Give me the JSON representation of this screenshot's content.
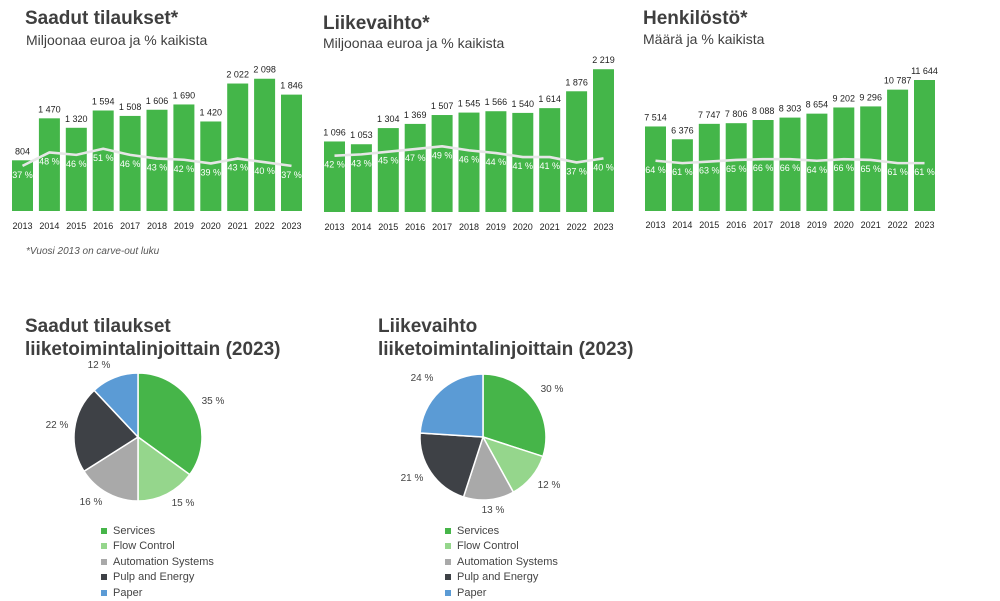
{
  "charts": [
    {
      "title": "Saadut tilaukset*",
      "subtitle": "Miljoonaa euroa ja % kaikista",
      "note": "*Vuosi 2013 on carve-out luku"
    },
    {
      "title": "Liikevaihto*",
      "subtitle": "Miljoonaa euroa ja % kaikista"
    },
    {
      "title": "Henkilöstö*",
      "subtitle": "Määrä ja % kaikista"
    },
    {
      "title_lines": [
        "Saadut tilaukset",
        "liiketoimintalinjoittain (2023)"
      ]
    },
    {
      "title_lines": [
        "Liikevaihto",
        "liiketoimintalinjoittain (2023)"
      ]
    }
  ],
  "legend": [
    "Services",
    "Flow Control",
    "Automation Systems",
    "Pulp and Energy",
    "Paper"
  ],
  "colors": {
    "bar": "#44b649",
    "line": "#e6e6e6",
    "slices": [
      "#46b549",
      "#95d68c",
      "#a9a9a9",
      "#3e4146",
      "#5b9bd5"
    ]
  },
  "chart_data": [
    {
      "type": "bar",
      "title": "Saadut tilaukset*",
      "subtitle": "Miljoonaa euroa ja % kaikista",
      "categories": [
        "2013",
        "2014",
        "2015",
        "2016",
        "2017",
        "2018",
        "2019",
        "2020",
        "2021",
        "2022",
        "2023"
      ],
      "values": [
        804,
        1470,
        1320,
        1594,
        1508,
        1606,
        1690,
        1420,
        2022,
        2098,
        1846
      ],
      "value_labels": [
        "804",
        "1 470",
        "1 320",
        "1 594",
        "1 508",
        "1 606",
        "1 690",
        "1 420",
        "2 022",
        "2 098",
        "1 846"
      ],
      "share_pct": [
        37,
        48,
        46,
        51,
        46,
        43,
        42,
        39,
        43,
        40,
        37
      ],
      "share_labels": [
        "37 %",
        "48 %",
        "46 %",
        "51 %",
        "46 %",
        "43 %",
        "42 %",
        "39 %",
        "43 %",
        "40 %",
        "37 %"
      ],
      "ylim": [
        0,
        2300
      ],
      "grid": false
    },
    {
      "type": "bar",
      "title": "Liikevaihto*",
      "subtitle": "Miljoonaa euroa ja % kaikista",
      "categories": [
        "2013",
        "2014",
        "2015",
        "2016",
        "2017",
        "2018",
        "2019",
        "2020",
        "2021",
        "2022",
        "2023"
      ],
      "values": [
        1096,
        1053,
        1304,
        1369,
        1507,
        1545,
        1566,
        1540,
        1614,
        1876,
        2219
      ],
      "value_labels": [
        "1 096",
        "1 053",
        "1 304",
        "1 369",
        "1 507",
        "1 545",
        "1 566",
        "1 540",
        "1 614",
        "1 876",
        "2 219"
      ],
      "share_pct": [
        42,
        43,
        45,
        47,
        49,
        46,
        44,
        41,
        41,
        37,
        40
      ],
      "share_labels": [
        "42 %",
        "43 %",
        "45 %",
        "47 %",
        "49 %",
        "46 %",
        "44 %",
        "41 %",
        "41 %",
        "37 %",
        "40 %"
      ],
      "ylim": [
        0,
        2300
      ],
      "grid": false
    },
    {
      "type": "bar",
      "title": "Henkilöstö*",
      "subtitle": "Määrä ja % kaikista",
      "categories": [
        "2013",
        "2014",
        "2015",
        "2016",
        "2017",
        "2018",
        "2019",
        "2020",
        "2021",
        "2022",
        "2023"
      ],
      "values": [
        7514,
        6376,
        7747,
        7806,
        8088,
        8303,
        8654,
        9202,
        9296,
        10787,
        11644
      ],
      "value_labels": [
        "7 514",
        "6 376",
        "7 747",
        "7 806",
        "8 088",
        "8 303",
        "8 654",
        "9 202",
        "9 296",
        "10 787",
        "11 644"
      ],
      "share_pct": [
        64,
        61,
        63,
        65,
        66,
        66,
        64,
        66,
        65,
        61,
        61
      ],
      "share_labels": [
        "64 %",
        "61 %",
        "63 %",
        "65 %",
        "66 %",
        "66 %",
        "64 %",
        "66 %",
        "65 %",
        "61 %",
        "61 %"
      ],
      "ylim": [
        0,
        12000
      ],
      "grid": false
    },
    {
      "type": "pie",
      "title": "Saadut tilaukset liiketoimintalinjoittain (2023)",
      "labels": [
        "Services",
        "Flow Control",
        "Automation Systems",
        "Pulp and Energy",
        "Paper"
      ],
      "values": [
        35,
        15,
        16,
        22,
        12
      ],
      "value_labels": [
        "35 %",
        "15 %",
        "16 %",
        "22 %",
        "12 %"
      ],
      "legend_position": "bottom"
    },
    {
      "type": "pie",
      "title": "Liikevaihto liiketoimintalinjoittain (2023)",
      "labels": [
        "Services",
        "Flow Control",
        "Automation Systems",
        "Pulp and Energy",
        "Paper"
      ],
      "values": [
        30,
        12,
        13,
        21,
        24
      ],
      "value_labels": [
        "30 %",
        "12 %",
        "13 %",
        "21 %",
        "24 %"
      ],
      "legend_position": "bottom"
    }
  ]
}
